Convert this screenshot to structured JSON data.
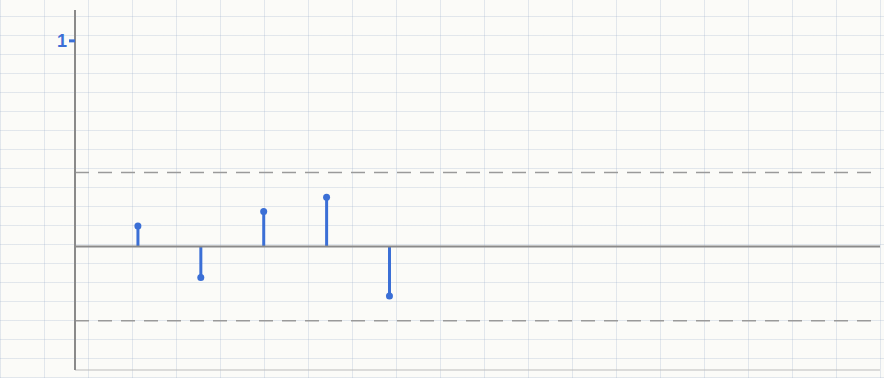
{
  "chart_data": {
    "type": "stem",
    "x": [
      1,
      2,
      3,
      4,
      5
    ],
    "values": [
      0.1,
      -0.15,
      0.17,
      0.24,
      -0.24
    ],
    "color": "#3b6fd6",
    "xlim": [
      0,
      12.8
    ],
    "ylim": [
      -0.6,
      1.15
    ],
    "yticks": [
      1
    ],
    "thresholds": [
      0.36,
      -0.36
    ],
    "tick_labels": "y",
    "marker": "circle"
  }
}
